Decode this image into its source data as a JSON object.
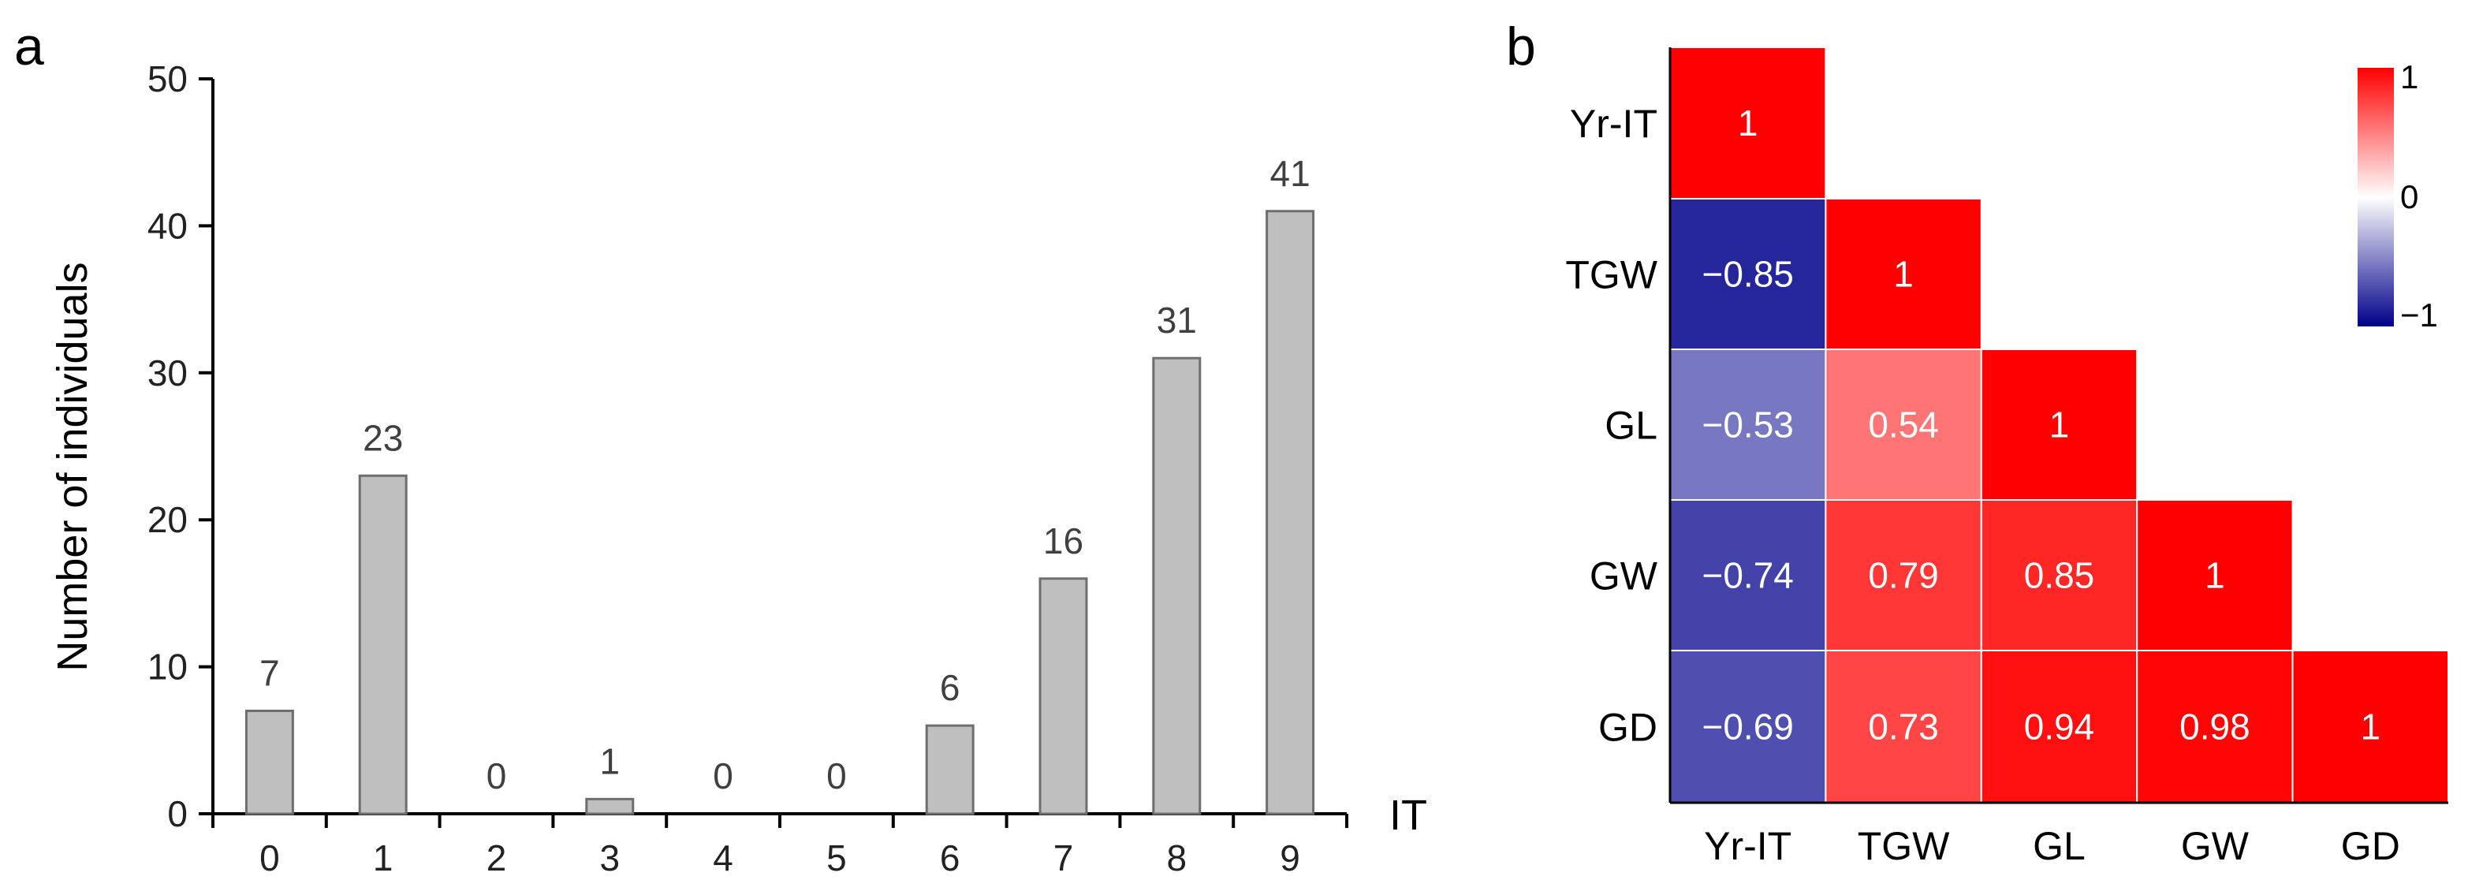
{
  "panels": {
    "a": "a",
    "b": "b"
  },
  "chart_data": [
    {
      "type": "bar",
      "panel": "a",
      "categories": [
        "0",
        "1",
        "2",
        "3",
        "4",
        "5",
        "6",
        "7",
        "8",
        "9"
      ],
      "values": [
        7,
        23,
        0,
        1,
        0,
        0,
        6,
        16,
        31,
        41
      ],
      "value_labels": [
        "7",
        "23",
        "0",
        "1",
        "0",
        "0",
        "6",
        "16",
        "31",
        "41"
      ],
      "xlabel": "IT",
      "ylabel": "Number of individuals",
      "ylim": [
        0,
        50
      ],
      "yticks": [
        0,
        10,
        20,
        30,
        40,
        50
      ],
      "bar_color": "#bfbfbf",
      "bar_edge_color": "#6e6e6e"
    },
    {
      "type": "heatmap",
      "panel": "b",
      "rows": [
        "Yr-IT",
        "TGW",
        "GL",
        "GW",
        "GD"
      ],
      "columns": [
        "Yr-IT",
        "TGW",
        "GL",
        "GW",
        "GD"
      ],
      "values": [
        [
          1
        ],
        [
          -0.85,
          1
        ],
        [
          -0.53,
          0.54,
          1
        ],
        [
          -0.74,
          0.79,
          0.85,
          1
        ],
        [
          -0.69,
          0.73,
          0.94,
          0.98,
          1
        ]
      ],
      "cell_labels": [
        [
          "1"
        ],
        [
          "−0.85",
          "1"
        ],
        [
          "−0.53",
          "0.54",
          "1"
        ],
        [
          "−0.74",
          "0.79",
          "0.85",
          "1"
        ],
        [
          "−0.69",
          "0.73",
          "0.94",
          "0.98",
          "1"
        ]
      ],
      "colorbar": {
        "min": -1,
        "max": 1,
        "tick_labels": [
          "1",
          "0",
          "−1"
        ],
        "colors": {
          "low": "#00008b",
          "mid": "#ffffff",
          "high": "#ff0000"
        }
      }
    }
  ]
}
